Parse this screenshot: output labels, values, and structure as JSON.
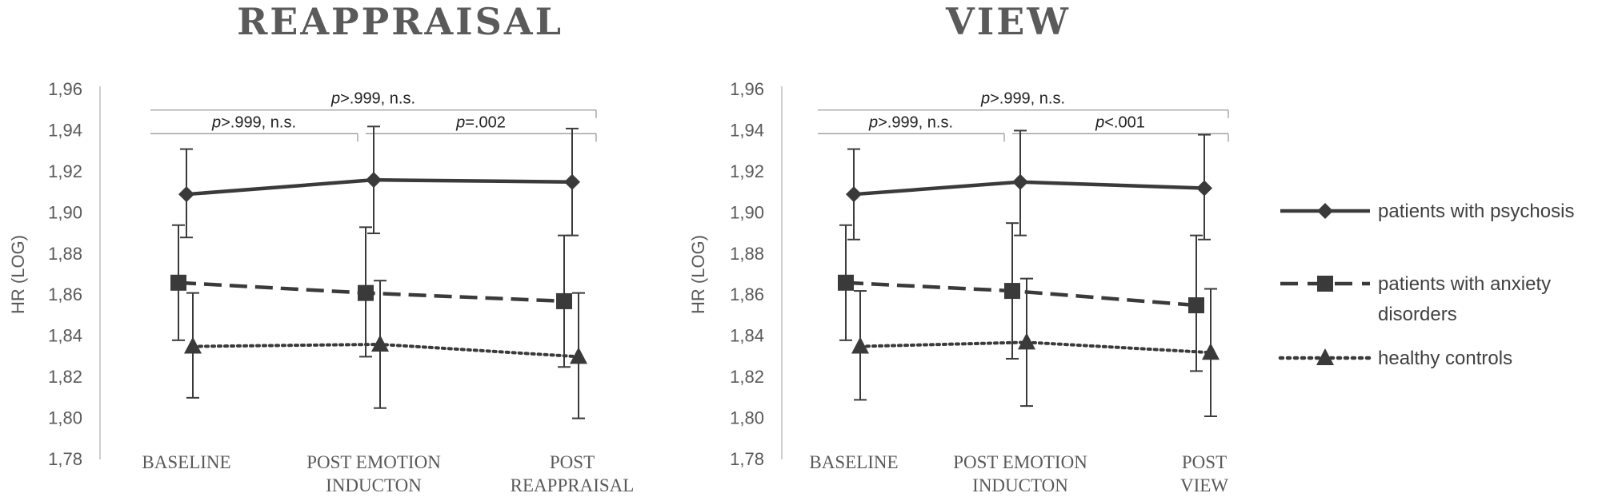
{
  "chart_data": [
    {
      "type": "line",
      "title": "REAPPRAISAL",
      "ylabel": "HR (LOG)",
      "ylim": [
        1.78,
        1.96
      ],
      "yticks": [
        "1,78",
        "1,80",
        "1,82",
        "1,84",
        "1,86",
        "1,88",
        "1,90",
        "1,92",
        "1,94",
        "1,96"
      ],
      "categories": [
        [
          "BASELINE"
        ],
        [
          "POST EMOTION",
          "INDUCTON"
        ],
        [
          "POST",
          "REAPPRAISAL"
        ]
      ],
      "series": [
        {
          "name": "patients with psychosis",
          "style": "solid",
          "marker": "diamond",
          "color": "#3a3a3a",
          "values": [
            1.909,
            1.916,
            1.915
          ],
          "err_low": [
            1.888,
            1.89,
            1.889
          ],
          "err_high": [
            1.931,
            1.942,
            1.941
          ]
        },
        {
          "name": "patients with anxiety disorders",
          "style": "dashed",
          "marker": "square",
          "color": "#3a3a3a",
          "values": [
            1.866,
            1.861,
            1.857
          ],
          "err_low": [
            1.838,
            1.83,
            1.825
          ],
          "err_high": [
            1.894,
            1.893,
            1.889
          ]
        },
        {
          "name": "healthy controls",
          "style": "dotted",
          "marker": "triangle",
          "color": "#3a3a3a",
          "values": [
            1.835,
            1.836,
            1.83
          ],
          "err_low": [
            1.81,
            1.805,
            1.8
          ],
          "err_high": [
            1.861,
            1.867,
            1.861
          ]
        }
      ],
      "significance": [
        {
          "text": "p>.999, n.s.",
          "p": "p",
          "rest": ">.999, n.s.",
          "from": 0,
          "to": 2,
          "level": 1.95
        },
        {
          "text": "p>.999, n.s.",
          "p": "p",
          "rest": ">.999, n.s.",
          "from": 0,
          "to": 1,
          "level": 1.9385
        },
        {
          "text": "p=.002",
          "p": "p",
          "rest": "=.002",
          "from": 1,
          "to": 2,
          "level": 1.9385
        }
      ]
    },
    {
      "type": "line",
      "title": "VIEW",
      "ylabel": "HR (LOG)",
      "ylim": [
        1.78,
        1.96
      ],
      "yticks": [
        "1,78",
        "1,80",
        "1,82",
        "1,84",
        "1,86",
        "1,88",
        "1,90",
        "1,92",
        "1,94",
        "1,96"
      ],
      "categories": [
        [
          "BASELINE"
        ],
        [
          "POST EMOTION",
          "INDUCTON"
        ],
        [
          "POST",
          "VIEW"
        ]
      ],
      "series": [
        {
          "name": "patients with psychosis",
          "style": "solid",
          "marker": "diamond",
          "color": "#3a3a3a",
          "values": [
            1.909,
            1.915,
            1.912
          ],
          "err_low": [
            1.887,
            1.889,
            1.887
          ],
          "err_high": [
            1.931,
            1.94,
            1.938
          ]
        },
        {
          "name": "patients with anxiety disorders",
          "style": "dashed",
          "marker": "square",
          "color": "#3a3a3a",
          "values": [
            1.866,
            1.862,
            1.855
          ],
          "err_low": [
            1.838,
            1.829,
            1.823
          ],
          "err_high": [
            1.894,
            1.895,
            1.889
          ]
        },
        {
          "name": "healthy controls",
          "style": "dotted",
          "marker": "triangle",
          "color": "#3a3a3a",
          "values": [
            1.835,
            1.837,
            1.832
          ],
          "err_low": [
            1.809,
            1.806,
            1.801
          ],
          "err_high": [
            1.862,
            1.868,
            1.863
          ]
        }
      ],
      "significance": [
        {
          "text": "p>.999, n.s.",
          "p": "p",
          "rest": ">.999, n.s.",
          "from": 0,
          "to": 2,
          "level": 1.95
        },
        {
          "text": "p>.999, n.s.",
          "p": "p",
          "rest": ">.999, n.s.",
          "from": 0,
          "to": 1,
          "level": 1.9385
        },
        {
          "text": "p<.001",
          "p": "p",
          "rest": "<.001",
          "from": 1,
          "to": 2,
          "level": 1.9385
        }
      ]
    }
  ],
  "legend": {
    "placement": "right",
    "items": [
      {
        "label_lines": [
          "patients with psychosis"
        ],
        "style": "solid",
        "marker": "diamond"
      },
      {
        "label_lines": [
          "patients with anxiety",
          "disorders"
        ],
        "style": "dashed",
        "marker": "square"
      },
      {
        "label_lines": [
          "healthy controls"
        ],
        "style": "dotted",
        "marker": "triangle"
      }
    ]
  }
}
